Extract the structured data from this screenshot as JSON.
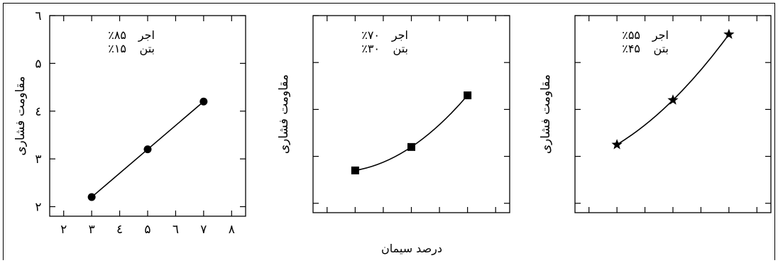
{
  "chart_data": [
    {
      "type": "line",
      "ylabel": "مقاومت فشاری",
      "legend": [
        {
          "pct": "٪۸۵",
          "label": "اجر"
        },
        {
          "pct": "٪۱۵",
          "label": "بتن"
        }
      ],
      "marker": "circle",
      "x": [
        3,
        5,
        7
      ],
      "y": [
        2.2,
        3.2,
        4.2
      ],
      "xlim": [
        1.5,
        8.5
      ],
      "ylim": [
        1.8,
        6.0
      ],
      "xticks": [
        2,
        3,
        4,
        5,
        6,
        7,
        8
      ],
      "xtick_labels": [
        "۲",
        "۳",
        "٤",
        "۵",
        "٦",
        "۷",
        "۸"
      ],
      "yticks": [
        2,
        3,
        4,
        5,
        6
      ],
      "ytick_labels": [
        "۲",
        "۳",
        "٤",
        "۵",
        "٦"
      ]
    },
    {
      "type": "line",
      "ylabel": "مقاومت فشاری",
      "legend": [
        {
          "pct": "٪۷۰",
          "label": "اجر"
        },
        {
          "pct": "٪۳۰",
          "label": "بتن"
        }
      ],
      "marker": "square",
      "x": [
        3,
        5,
        7
      ],
      "y": [
        2.7,
        3.2,
        4.3
      ],
      "xlim": [
        1.5,
        8.5
      ],
      "ylim": [
        1.8,
        6.0
      ],
      "xticks": [
        2,
        3,
        4,
        5,
        6,
        7,
        8
      ],
      "yticks": [
        2,
        3,
        4,
        5,
        6
      ]
    },
    {
      "type": "line",
      "ylabel": "مقاومت فشاری",
      "legend": [
        {
          "pct": "٪۵۵",
          "label": "اجر"
        },
        {
          "pct": "٪۴۵",
          "label": "بتن"
        }
      ],
      "marker": "star",
      "x": [
        3,
        5,
        7
      ],
      "y": [
        3.25,
        4.2,
        5.6
      ],
      "xlim": [
        1.5,
        8.5
      ],
      "ylim": [
        1.8,
        6.0
      ],
      "xticks": [
        2,
        3,
        4,
        5,
        6,
        7,
        8
      ],
      "yticks": [
        2,
        3,
        4,
        5,
        6
      ]
    }
  ],
  "shared_xlabel": "درصد سیمان"
}
